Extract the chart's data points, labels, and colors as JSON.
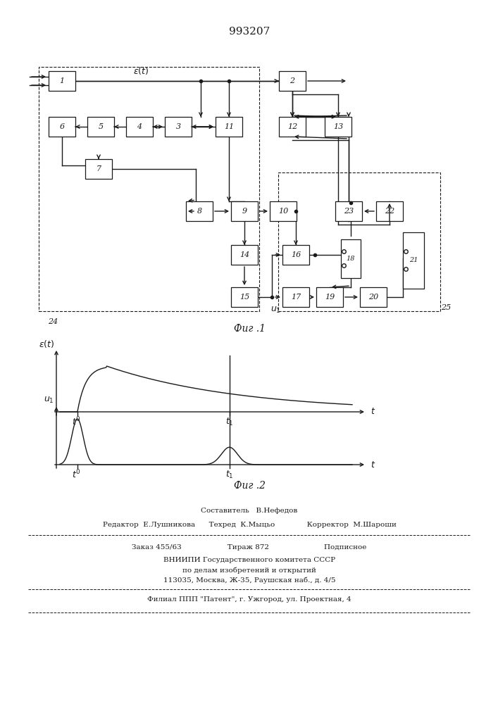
{
  "title": "993207",
  "fig1_label": "Фиг .1",
  "fig2_label": "Фиг .2",
  "bg_color": "#ffffff",
  "line_color": "#1a1a1a",
  "footer": [
    [
      "center",
      "Составитель   В.Нефедов"
    ],
    [
      "left",
      "Редактор  Е.Лушникова"
    ],
    [
      "center",
      "Техред  К.Мыцьо"
    ],
    [
      "right",
      "Корректор  М.Шароши"
    ],
    [
      "left",
      "Заказ 455/63"
    ],
    [
      "center",
      "Тираж 872"
    ],
    [
      "right",
      "Подписное"
    ],
    [
      "center",
      "ВНИИПИ Государственного комитета СССР"
    ],
    [
      "center",
      "по делам изобретений и открытий"
    ],
    [
      "center",
      "113035, Москва, Ж-35, Раушская наб., д. 4/5"
    ],
    [
      "center",
      "Филиал ППП \"Патент\", г. Ужгород, ул. Проектная, 4"
    ]
  ]
}
